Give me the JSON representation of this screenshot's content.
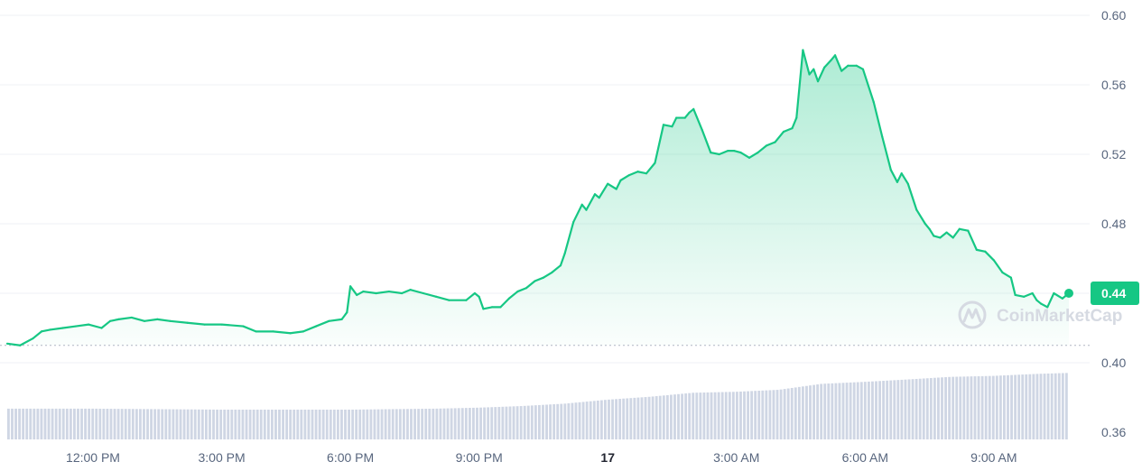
{
  "watermark": {
    "text": "CoinMarketCap",
    "icon": "coinmarketcap-logo-icon"
  },
  "chart_data": {
    "type": "line",
    "title": "",
    "xlabel": "",
    "ylabel": "",
    "ylim": [
      0.36,
      0.6
    ],
    "y_ticks": [
      0.6,
      0.56,
      0.52,
      0.48,
      0.4,
      0.36
    ],
    "y_tick_labels": [
      "0.60",
      "0.56",
      "0.52",
      "0.48",
      "0.40",
      "0.36"
    ],
    "x_range": [
      10.0,
      34.75
    ],
    "x_ticks": [
      12,
      15,
      18,
      21,
      24,
      27,
      30,
      33
    ],
    "x_tick_labels": [
      "12:00 PM",
      "3:00 PM",
      "6:00 PM",
      "9:00 PM",
      "17",
      "3:00 AM",
      "6:00 AM",
      "9:00 AM"
    ],
    "x_unit": "hours from 00:00 of the first day",
    "reference_price": 0.41,
    "current_price": {
      "value": 0.44,
      "label": "0.44",
      "color": "#16c784"
    },
    "colors": {
      "up": "#16c784",
      "down": "#ea3943",
      "volume": "#cfd6e4",
      "grid": "#eff2f5"
    },
    "grid": true,
    "price": [
      [
        10.0,
        0.411
      ],
      [
        10.3,
        0.41
      ],
      [
        10.6,
        0.414
      ],
      [
        10.8,
        0.418
      ],
      [
        11.0,
        0.419
      ],
      [
        11.3,
        0.42
      ],
      [
        11.6,
        0.421
      ],
      [
        11.9,
        0.422
      ],
      [
        12.2,
        0.42
      ],
      [
        12.4,
        0.424
      ],
      [
        12.6,
        0.425
      ],
      [
        12.9,
        0.426
      ],
      [
        13.2,
        0.424
      ],
      [
        13.5,
        0.425
      ],
      [
        13.8,
        0.424
      ],
      [
        14.2,
        0.423
      ],
      [
        14.6,
        0.422
      ],
      [
        15.0,
        0.422
      ],
      [
        15.5,
        0.421
      ],
      [
        15.8,
        0.418
      ],
      [
        16.2,
        0.418
      ],
      [
        16.6,
        0.417
      ],
      [
        16.9,
        0.418
      ],
      [
        17.2,
        0.421
      ],
      [
        17.5,
        0.424
      ],
      [
        17.8,
        0.425
      ],
      [
        17.92,
        0.429
      ],
      [
        18.0,
        0.444
      ],
      [
        18.15,
        0.439
      ],
      [
        18.3,
        0.441
      ],
      [
        18.6,
        0.44
      ],
      [
        18.9,
        0.441
      ],
      [
        19.2,
        0.44
      ],
      [
        19.4,
        0.442
      ],
      [
        19.7,
        0.44
      ],
      [
        20.0,
        0.438
      ],
      [
        20.3,
        0.436
      ],
      [
        20.7,
        0.436
      ],
      [
        20.9,
        0.44
      ],
      [
        21.0,
        0.438
      ],
      [
        21.1,
        0.431
      ],
      [
        21.3,
        0.432
      ],
      [
        21.5,
        0.432
      ],
      [
        21.7,
        0.437
      ],
      [
        21.9,
        0.441
      ],
      [
        22.1,
        0.443
      ],
      [
        22.3,
        0.447
      ],
      [
        22.5,
        0.449
      ],
      [
        22.7,
        0.452
      ],
      [
        22.9,
        0.456
      ],
      [
        23.0,
        0.463
      ],
      [
        23.2,
        0.481
      ],
      [
        23.4,
        0.491
      ],
      [
        23.5,
        0.488
      ],
      [
        23.7,
        0.497
      ],
      [
        23.8,
        0.495
      ],
      [
        24.0,
        0.503
      ],
      [
        24.2,
        0.5
      ],
      [
        24.3,
        0.505
      ],
      [
        24.5,
        0.508
      ],
      [
        24.7,
        0.51
      ],
      [
        24.9,
        0.509
      ],
      [
        25.1,
        0.515
      ],
      [
        25.3,
        0.537
      ],
      [
        25.5,
        0.536
      ],
      [
        25.6,
        0.541
      ],
      [
        25.8,
        0.541
      ],
      [
        25.9,
        0.544
      ],
      [
        26.0,
        0.546
      ],
      [
        26.2,
        0.534
      ],
      [
        26.4,
        0.521
      ],
      [
        26.6,
        0.52
      ],
      [
        26.8,
        0.522
      ],
      [
        26.95,
        0.522
      ],
      [
        27.1,
        0.521
      ],
      [
        27.3,
        0.518
      ],
      [
        27.5,
        0.521
      ],
      [
        27.7,
        0.525
      ],
      [
        27.9,
        0.527
      ],
      [
        28.1,
        0.533
      ],
      [
        28.3,
        0.535
      ],
      [
        28.4,
        0.541
      ],
      [
        28.55,
        0.58
      ],
      [
        28.7,
        0.566
      ],
      [
        28.8,
        0.569
      ],
      [
        28.9,
        0.562
      ],
      [
        29.05,
        0.57
      ],
      [
        29.2,
        0.574
      ],
      [
        29.3,
        0.577
      ],
      [
        29.45,
        0.568
      ],
      [
        29.6,
        0.571
      ],
      [
        29.8,
        0.571
      ],
      [
        29.95,
        0.569
      ],
      [
        30.2,
        0.55
      ],
      [
        30.4,
        0.53
      ],
      [
        30.6,
        0.511
      ],
      [
        30.75,
        0.504
      ],
      [
        30.85,
        0.509
      ],
      [
        31.0,
        0.503
      ],
      [
        31.2,
        0.488
      ],
      [
        31.4,
        0.48
      ],
      [
        31.5,
        0.477
      ],
      [
        31.6,
        0.473
      ],
      [
        31.75,
        0.472
      ],
      [
        31.9,
        0.475
      ],
      [
        32.05,
        0.472
      ],
      [
        32.2,
        0.477
      ],
      [
        32.4,
        0.476
      ],
      [
        32.6,
        0.465
      ],
      [
        32.8,
        0.464
      ],
      [
        33.0,
        0.459
      ],
      [
        33.2,
        0.452
      ],
      [
        33.4,
        0.449
      ],
      [
        33.5,
        0.439
      ],
      [
        33.7,
        0.438
      ],
      [
        33.9,
        0.44
      ],
      [
        34.0,
        0.436
      ],
      [
        34.1,
        0.434
      ],
      [
        34.25,
        0.432
      ],
      [
        34.4,
        0.44
      ],
      [
        34.6,
        0.437
      ],
      [
        34.75,
        0.44
      ]
    ],
    "volume": [
      [
        10.0,
        0.0155
      ],
      [
        12.0,
        0.0155
      ],
      [
        15.0,
        0.015
      ],
      [
        18.0,
        0.015
      ],
      [
        20.0,
        0.0155
      ],
      [
        21.0,
        0.016
      ],
      [
        22.0,
        0.0168
      ],
      [
        23.0,
        0.018
      ],
      [
        24.0,
        0.02
      ],
      [
        25.0,
        0.0215
      ],
      [
        26.0,
        0.0235
      ],
      [
        27.0,
        0.024
      ],
      [
        28.0,
        0.025
      ],
      [
        28.5,
        0.0265
      ],
      [
        29.0,
        0.028
      ],
      [
        30.0,
        0.029
      ],
      [
        31.0,
        0.0302
      ],
      [
        32.0,
        0.0315
      ],
      [
        33.0,
        0.032
      ],
      [
        34.0,
        0.033
      ],
      [
        34.75,
        0.0335
      ]
    ]
  }
}
